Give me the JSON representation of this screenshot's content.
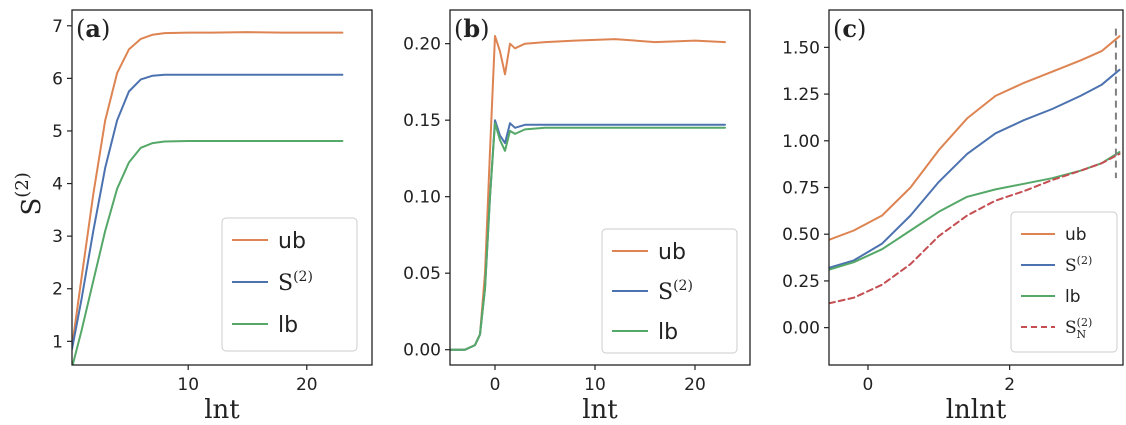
{
  "colors": {
    "ub": "#dd8452",
    "s2": "#4c72b0",
    "lb": "#55a868",
    "sn2": "#c44e52",
    "vline": "#7f7f7f"
  },
  "chart_data": [
    {
      "type": "line",
      "panel_label": "a",
      "xlabel": "lnt",
      "ylabel": "S",
      "ylabel_sup": "(2)",
      "xlim": [
        0.2,
        25.5
      ],
      "ylim": [
        0.55,
        7.3
      ],
      "xticks": [
        10,
        20
      ],
      "yticks": [
        1,
        2,
        3,
        4,
        5,
        6,
        7
      ],
      "legend_position": "lower-right",
      "series": [
        {
          "name": "ub",
          "color": "#dd8452",
          "x": [
            0.2,
            1,
            2,
            3,
            4,
            5,
            6,
            7,
            8,
            10,
            12,
            15,
            18,
            20,
            23
          ],
          "y": [
            0.9,
            2.2,
            3.8,
            5.2,
            6.1,
            6.55,
            6.75,
            6.83,
            6.86,
            6.87,
            6.87,
            6.88,
            6.87,
            6.87,
            6.87
          ]
        },
        {
          "name": "S",
          "sup": "(2)",
          "color": "#4c72b0",
          "x": [
            0.2,
            1,
            2,
            3,
            4,
            5,
            6,
            7,
            8,
            10,
            12,
            15,
            18,
            20,
            23
          ],
          "y": [
            0.85,
            1.8,
            3.1,
            4.3,
            5.2,
            5.75,
            5.98,
            6.05,
            6.07,
            6.07,
            6.07,
            6.07,
            6.07,
            6.07,
            6.07
          ]
        },
        {
          "name": "lb",
          "color": "#55a868",
          "x": [
            0.2,
            1,
            2,
            3,
            4,
            5,
            6,
            7,
            8,
            10,
            12,
            15,
            18,
            20,
            23
          ],
          "y": [
            0.5,
            1.2,
            2.15,
            3.1,
            3.9,
            4.4,
            4.68,
            4.77,
            4.8,
            4.81,
            4.81,
            4.81,
            4.81,
            4.81,
            4.81
          ]
        }
      ],
      "legend": [
        {
          "label": "ub",
          "series": 0
        },
        {
          "label": "S",
          "sup": "(2)",
          "series": 1
        },
        {
          "label": "lb",
          "series": 2
        }
      ]
    },
    {
      "type": "line",
      "panel_label": "b",
      "xlabel": "lnt",
      "xlim": [
        -4.5,
        25.5
      ],
      "ylim": [
        -0.01,
        0.222
      ],
      "xticks": [
        0,
        10,
        20
      ],
      "yticks": [
        0.0,
        0.05,
        0.1,
        0.15,
        0.2
      ],
      "ytick_labels": [
        "0.00",
        "0.05",
        "0.10",
        "0.15",
        "0.20"
      ],
      "legend_position": "lower-right",
      "series": [
        {
          "name": "ub",
          "color": "#dd8452",
          "x": [
            -4.5,
            -3,
            -2,
            -1.5,
            -1,
            -0.5,
            0,
            0.5,
            1,
            1.5,
            2,
            3,
            5,
            8,
            12,
            16,
            20,
            23
          ],
          "y": [
            0.0,
            0.0,
            0.003,
            0.01,
            0.05,
            0.13,
            0.205,
            0.195,
            0.18,
            0.2,
            0.197,
            0.2,
            0.201,
            0.202,
            0.203,
            0.201,
            0.202,
            0.201
          ]
        },
        {
          "name": "S",
          "sup": "(2)",
          "color": "#4c72b0",
          "x": [
            -4.5,
            -3,
            -2,
            -1.5,
            -1,
            -0.5,
            0,
            0.5,
            1,
            1.5,
            2,
            3,
            5,
            8,
            12,
            16,
            20,
            23
          ],
          "y": [
            0.0,
            0.0,
            0.003,
            0.01,
            0.04,
            0.1,
            0.15,
            0.14,
            0.135,
            0.148,
            0.145,
            0.147,
            0.147,
            0.147,
            0.147,
            0.147,
            0.147,
            0.147
          ]
        },
        {
          "name": "lb",
          "color": "#55a868",
          "x": [
            -4.5,
            -3,
            -2,
            -1.5,
            -1,
            -0.5,
            0,
            0.5,
            1,
            1.5,
            2,
            3,
            5,
            8,
            12,
            16,
            20,
            23
          ],
          "y": [
            0.0,
            0.0,
            0.003,
            0.01,
            0.04,
            0.1,
            0.148,
            0.137,
            0.13,
            0.143,
            0.141,
            0.144,
            0.145,
            0.145,
            0.145,
            0.145,
            0.145,
            0.145
          ]
        }
      ],
      "legend": [
        {
          "label": "ub",
          "series": 0
        },
        {
          "label": "S",
          "sup": "(2)",
          "series": 1
        },
        {
          "label": "lb",
          "series": 2
        }
      ]
    },
    {
      "type": "line",
      "panel_label": "c",
      "xlabel": "lnlnt",
      "xlim": [
        -0.55,
        3.6
      ],
      "ylim": [
        -0.2,
        1.7
      ],
      "xticks": [
        0,
        2
      ],
      "yticks": [
        0.0,
        0.25,
        0.5,
        0.75,
        1.0,
        1.25,
        1.5
      ],
      "ytick_labels": [
        "0.00",
        "0.25",
        "0.50",
        "0.75",
        "1.00",
        "1.25",
        "1.50"
      ],
      "vline": {
        "x": 3.5,
        "ymin": 0.8,
        "ymax": 1.6
      },
      "legend_position": "lower-right",
      "series": [
        {
          "name": "ub",
          "color": "#dd8452",
          "x": [
            -0.55,
            -0.2,
            0.2,
            0.6,
            1.0,
            1.4,
            1.8,
            2.2,
            2.6,
            3.0,
            3.3,
            3.55
          ],
          "y": [
            0.47,
            0.52,
            0.6,
            0.75,
            0.95,
            1.12,
            1.24,
            1.31,
            1.37,
            1.43,
            1.48,
            1.56
          ]
        },
        {
          "name": "S",
          "sup": "(2)",
          "color": "#4c72b0",
          "x": [
            -0.55,
            -0.2,
            0.2,
            0.6,
            1.0,
            1.4,
            1.8,
            2.2,
            2.6,
            3.0,
            3.3,
            3.55
          ],
          "y": [
            0.32,
            0.36,
            0.45,
            0.6,
            0.78,
            0.93,
            1.04,
            1.11,
            1.17,
            1.24,
            1.3,
            1.38
          ]
        },
        {
          "name": "lb",
          "color": "#55a868",
          "x": [
            -0.55,
            -0.2,
            0.2,
            0.6,
            1.0,
            1.4,
            1.8,
            2.2,
            2.6,
            3.0,
            3.3,
            3.55
          ],
          "y": [
            0.31,
            0.35,
            0.42,
            0.52,
            0.62,
            0.7,
            0.74,
            0.77,
            0.8,
            0.84,
            0.88,
            0.94
          ]
        },
        {
          "name": "S",
          "sup": "(2)",
          "sub": "N",
          "color": "#c44e52",
          "dashed": true,
          "x": [
            -0.55,
            -0.2,
            0.2,
            0.6,
            1.0,
            1.4,
            1.8,
            2.2,
            2.6,
            3.0,
            3.3,
            3.55
          ],
          "y": [
            0.13,
            0.16,
            0.23,
            0.34,
            0.49,
            0.6,
            0.68,
            0.73,
            0.79,
            0.84,
            0.88,
            0.93
          ]
        }
      ],
      "legend": [
        {
          "label": "ub",
          "series": 0
        },
        {
          "label": "S",
          "sup": "(2)",
          "series": 1
        },
        {
          "label": "lb",
          "series": 2
        },
        {
          "label": "S",
          "sup": "(2)",
          "sub": "N",
          "series": 3
        }
      ]
    }
  ]
}
